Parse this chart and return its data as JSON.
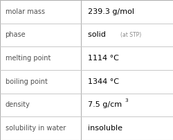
{
  "rows": [
    {
      "label": "molar mass",
      "value": "239.3 g/mol",
      "superscript": null,
      "extra": null
    },
    {
      "label": "phase",
      "value": "solid",
      "superscript": null,
      "extra": "(at STP)"
    },
    {
      "label": "melting point",
      "value": "1114 °C",
      "superscript": null,
      "extra": null
    },
    {
      "label": "boiling point",
      "value": "1344 °C",
      "superscript": null,
      "extra": null
    },
    {
      "label": "density",
      "value": "7.5 g/cm",
      "superscript": "3",
      "extra": null
    },
    {
      "label": "solubility in water",
      "value": "insoluble",
      "superscript": null,
      "extra": null
    }
  ],
  "background_color": "#ffffff",
  "border_color": "#b0b0b0",
  "divider_color": "#c8c8c8",
  "label_color": "#505050",
  "value_color": "#000000",
  "extra_color": "#888888",
  "label_fontsize": 7.0,
  "value_fontsize": 8.0,
  "extra_fontsize": 5.5,
  "superscript_fontsize": 5.2,
  "col_split": 0.465
}
